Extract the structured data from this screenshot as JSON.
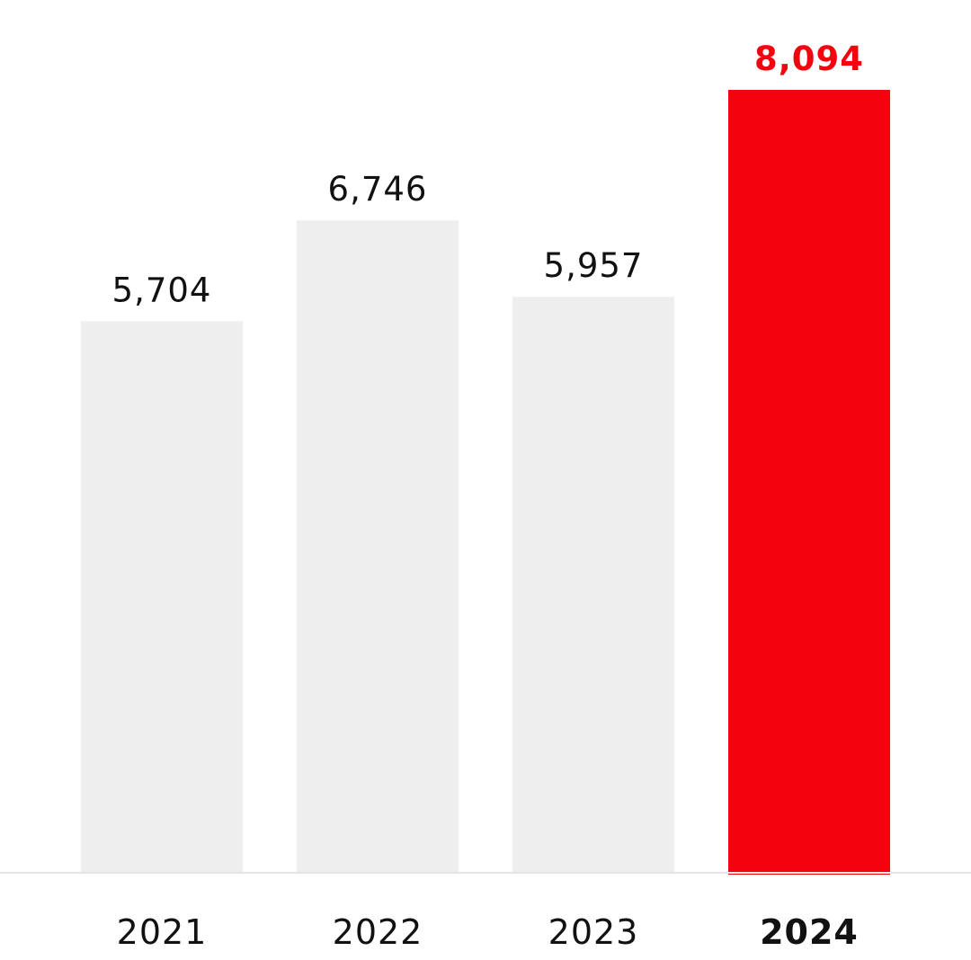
{
  "chart_data": {
    "type": "bar",
    "categories": [
      "2021",
      "2022",
      "2023",
      "2024"
    ],
    "values": [
      5704,
      6746,
      5957,
      8094
    ],
    "value_labels": [
      "5,704",
      "6,746",
      "5,957",
      "8,094"
    ],
    "title": "",
    "xlabel": "",
    "ylabel": "",
    "ylim": [
      0,
      8400
    ],
    "grid": false,
    "legend": "none",
    "highlight_index": 3,
    "colors": {
      "bar": "#eeeeee",
      "highlight_bar": "#f5020f",
      "label": "#111111",
      "highlight_label": "#f5020f",
      "baseline": "#e4e4e4"
    }
  }
}
